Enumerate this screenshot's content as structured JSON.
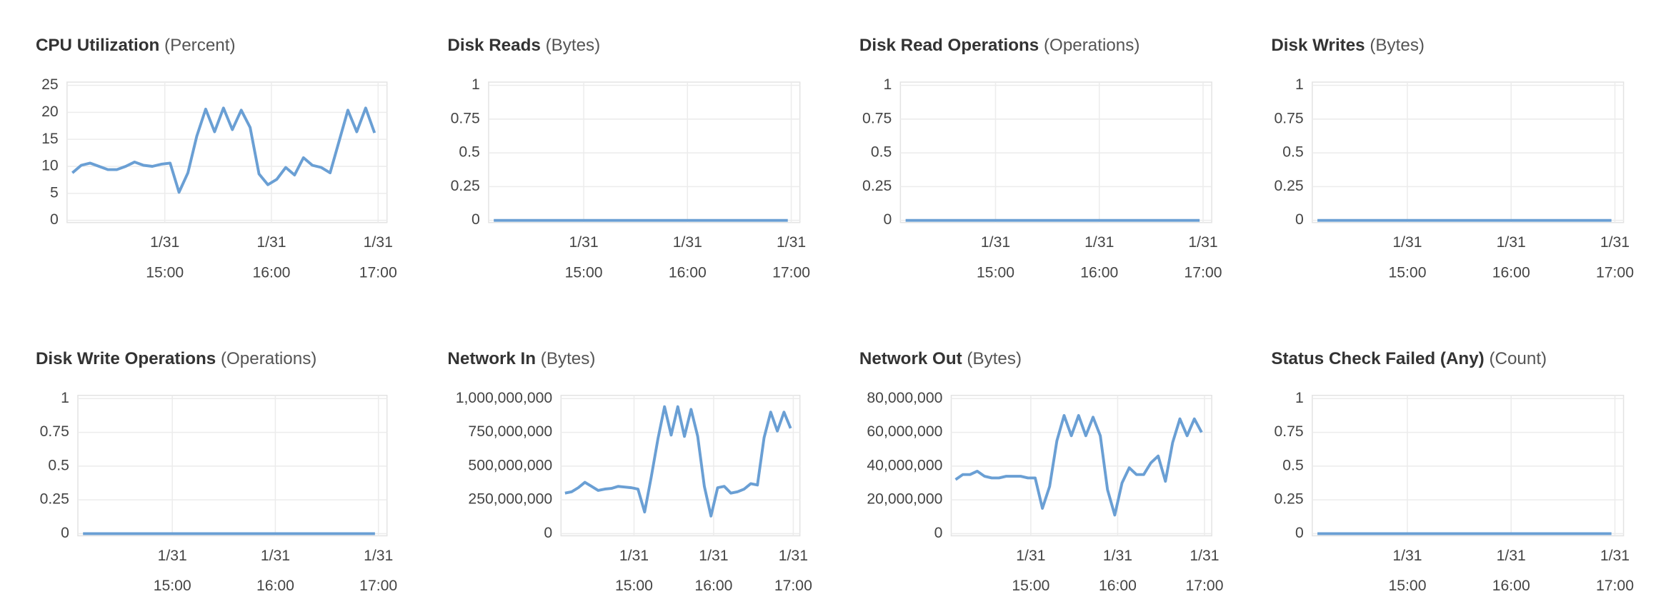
{
  "chart_data": [
    {
      "type": "line",
      "title": "CPU Utilization",
      "unit": "(Percent)",
      "color": "#6a9fd4",
      "grid": true,
      "x": [
        "1/31 14:08",
        "1/31 14:13",
        "1/31 14:18",
        "1/31 14:23",
        "1/31 14:28",
        "1/31 14:33",
        "1/31 14:38",
        "1/31 14:43",
        "1/31 14:48",
        "1/31 14:53",
        "1/31 14:58",
        "1/31 15:03",
        "1/31 15:08",
        "1/31 15:13",
        "1/31 15:18",
        "1/31 15:23",
        "1/31 15:28",
        "1/31 15:33",
        "1/31 15:38",
        "1/31 15:43",
        "1/31 15:48",
        "1/31 15:53",
        "1/31 15:58",
        "1/31 16:03",
        "1/31 16:08",
        "1/31 16:13",
        "1/31 16:18",
        "1/31 16:23",
        "1/31 16:28",
        "1/31 16:33",
        "1/31 16:38",
        "1/31 16:43",
        "1/31 16:48",
        "1/31 16:53",
        "1/31 16:58"
      ],
      "values": [
        8.8,
        10.2,
        10.6,
        10,
        9.4,
        9.4,
        10,
        10.8,
        10.2,
        10,
        10.4,
        10.6,
        5.2,
        8.8,
        15.6,
        20.6,
        16.4,
        20.8,
        16.8,
        20.4,
        17.2,
        8.6,
        6.6,
        7.6,
        9.8,
        8.4,
        11.6,
        10.2,
        9.8,
        8.8,
        14.6,
        20.4,
        16.4,
        20.8,
        16.2
      ],
      "xlim": [
        "1/31 14:05",
        "1/31 17:05"
      ],
      "xticks": [
        {
          "value": "1/31 15:00",
          "label": [
            "1/31",
            "15:00"
          ]
        },
        {
          "value": "1/31 16:00",
          "label": [
            "1/31",
            "16:00"
          ]
        },
        {
          "value": "1/31 17:00",
          "label": [
            "1/31",
            "17:00"
          ]
        }
      ],
      "ylim": [
        0,
        25
      ],
      "yticks": [
        0,
        5,
        10,
        15,
        20,
        25
      ]
    },
    {
      "type": "line",
      "title": "Disk Reads",
      "unit": "(Bytes)",
      "color": "#6a9fd4",
      "grid": true,
      "x": [
        "1/31 14:08",
        "1/31 14:13",
        "1/31 14:18",
        "1/31 14:23",
        "1/31 14:28",
        "1/31 14:33",
        "1/31 14:38",
        "1/31 14:43",
        "1/31 14:48",
        "1/31 14:53",
        "1/31 14:58",
        "1/31 15:03",
        "1/31 15:08",
        "1/31 15:13",
        "1/31 15:18",
        "1/31 15:23",
        "1/31 15:28",
        "1/31 15:33",
        "1/31 15:38",
        "1/31 15:43",
        "1/31 15:48",
        "1/31 15:53",
        "1/31 15:58",
        "1/31 16:03",
        "1/31 16:08",
        "1/31 16:13",
        "1/31 16:18",
        "1/31 16:23",
        "1/31 16:28",
        "1/31 16:33",
        "1/31 16:38",
        "1/31 16:43",
        "1/31 16:48",
        "1/31 16:53",
        "1/31 16:58"
      ],
      "values": [
        0,
        0,
        0,
        0,
        0,
        0,
        0,
        0,
        0,
        0,
        0,
        0,
        0,
        0,
        0,
        0,
        0,
        0,
        0,
        0,
        0,
        0,
        0,
        0,
        0,
        0,
        0,
        0,
        0,
        0,
        0,
        0,
        0,
        0,
        0
      ],
      "xlim": [
        "1/31 14:05",
        "1/31 17:05"
      ],
      "xticks": [
        {
          "value": "1/31 15:00",
          "label": [
            "1/31",
            "15:00"
          ]
        },
        {
          "value": "1/31 16:00",
          "label": [
            "1/31",
            "16:00"
          ]
        },
        {
          "value": "1/31 17:00",
          "label": [
            "1/31",
            "17:00"
          ]
        }
      ],
      "ylim": [
        0,
        1
      ],
      "yticks": [
        0,
        0.25,
        0.5,
        0.75,
        1
      ]
    },
    {
      "type": "line",
      "title": "Disk Read Operations",
      "unit": "(Operations)",
      "color": "#6a9fd4",
      "grid": true,
      "x": [
        "1/31 14:08",
        "1/31 14:13",
        "1/31 14:18",
        "1/31 14:23",
        "1/31 14:28",
        "1/31 14:33",
        "1/31 14:38",
        "1/31 14:43",
        "1/31 14:48",
        "1/31 14:53",
        "1/31 14:58",
        "1/31 15:03",
        "1/31 15:08",
        "1/31 15:13",
        "1/31 15:18",
        "1/31 15:23",
        "1/31 15:28",
        "1/31 15:33",
        "1/31 15:38",
        "1/31 15:43",
        "1/31 15:48",
        "1/31 15:53",
        "1/31 15:58",
        "1/31 16:03",
        "1/31 16:08",
        "1/31 16:13",
        "1/31 16:18",
        "1/31 16:23",
        "1/31 16:28",
        "1/31 16:33",
        "1/31 16:38",
        "1/31 16:43",
        "1/31 16:48",
        "1/31 16:53",
        "1/31 16:58"
      ],
      "values": [
        0,
        0,
        0,
        0,
        0,
        0,
        0,
        0,
        0,
        0,
        0,
        0,
        0,
        0,
        0,
        0,
        0,
        0,
        0,
        0,
        0,
        0,
        0,
        0,
        0,
        0,
        0,
        0,
        0,
        0,
        0,
        0,
        0,
        0,
        0
      ],
      "xlim": [
        "1/31 14:05",
        "1/31 17:05"
      ],
      "xticks": [
        {
          "value": "1/31 15:00",
          "label": [
            "1/31",
            "15:00"
          ]
        },
        {
          "value": "1/31 16:00",
          "label": [
            "1/31",
            "16:00"
          ]
        },
        {
          "value": "1/31 17:00",
          "label": [
            "1/31",
            "17:00"
          ]
        }
      ],
      "ylim": [
        0,
        1
      ],
      "yticks": [
        0,
        0.25,
        0.5,
        0.75,
        1
      ]
    },
    {
      "type": "line",
      "title": "Disk Writes",
      "unit": "(Bytes)",
      "color": "#6a9fd4",
      "grid": true,
      "x": [
        "1/31 14:08",
        "1/31 14:13",
        "1/31 14:18",
        "1/31 14:23",
        "1/31 14:28",
        "1/31 14:33",
        "1/31 14:38",
        "1/31 14:43",
        "1/31 14:48",
        "1/31 14:53",
        "1/31 14:58",
        "1/31 15:03",
        "1/31 15:08",
        "1/31 15:13",
        "1/31 15:18",
        "1/31 15:23",
        "1/31 15:28",
        "1/31 15:33",
        "1/31 15:38",
        "1/31 15:43",
        "1/31 15:48",
        "1/31 15:53",
        "1/31 15:58",
        "1/31 16:03",
        "1/31 16:08",
        "1/31 16:13",
        "1/31 16:18",
        "1/31 16:23",
        "1/31 16:28",
        "1/31 16:33",
        "1/31 16:38",
        "1/31 16:43",
        "1/31 16:48",
        "1/31 16:53",
        "1/31 16:58"
      ],
      "values": [
        0,
        0,
        0,
        0,
        0,
        0,
        0,
        0,
        0,
        0,
        0,
        0,
        0,
        0,
        0,
        0,
        0,
        0,
        0,
        0,
        0,
        0,
        0,
        0,
        0,
        0,
        0,
        0,
        0,
        0,
        0,
        0,
        0,
        0,
        0
      ],
      "xlim": [
        "1/31 14:05",
        "1/31 17:05"
      ],
      "xticks": [
        {
          "value": "1/31 15:00",
          "label": [
            "1/31",
            "15:00"
          ]
        },
        {
          "value": "1/31 16:00",
          "label": [
            "1/31",
            "16:00"
          ]
        },
        {
          "value": "1/31 17:00",
          "label": [
            "1/31",
            "17:00"
          ]
        }
      ],
      "ylim": [
        0,
        1
      ],
      "yticks": [
        0,
        0.25,
        0.5,
        0.75,
        1
      ]
    },
    {
      "type": "line",
      "title": "Disk Write Operations",
      "unit": "(Operations)",
      "color": "#6a9fd4",
      "grid": true,
      "x": [
        "1/31 14:08",
        "1/31 14:13",
        "1/31 14:18",
        "1/31 14:23",
        "1/31 14:28",
        "1/31 14:33",
        "1/31 14:38",
        "1/31 14:43",
        "1/31 14:48",
        "1/31 14:53",
        "1/31 14:58",
        "1/31 15:03",
        "1/31 15:08",
        "1/31 15:13",
        "1/31 15:18",
        "1/31 15:23",
        "1/31 15:28",
        "1/31 15:33",
        "1/31 15:38",
        "1/31 15:43",
        "1/31 15:48",
        "1/31 15:53",
        "1/31 15:58",
        "1/31 16:03",
        "1/31 16:08",
        "1/31 16:13",
        "1/31 16:18",
        "1/31 16:23",
        "1/31 16:28",
        "1/31 16:33",
        "1/31 16:38",
        "1/31 16:43",
        "1/31 16:48",
        "1/31 16:53",
        "1/31 16:58"
      ],
      "values": [
        0,
        0,
        0,
        0,
        0,
        0,
        0,
        0,
        0,
        0,
        0,
        0,
        0,
        0,
        0,
        0,
        0,
        0,
        0,
        0,
        0,
        0,
        0,
        0,
        0,
        0,
        0,
        0,
        0,
        0,
        0,
        0,
        0,
        0,
        0
      ],
      "xlim": [
        "1/31 14:05",
        "1/31 17:05"
      ],
      "xticks": [
        {
          "value": "1/31 15:00",
          "label": [
            "1/31",
            "15:00"
          ]
        },
        {
          "value": "1/31 16:00",
          "label": [
            "1/31",
            "16:00"
          ]
        },
        {
          "value": "1/31 17:00",
          "label": [
            "1/31",
            "17:00"
          ]
        }
      ],
      "ylim": [
        0,
        1
      ],
      "yticks": [
        0,
        0.25,
        0.5,
        0.75,
        1
      ]
    },
    {
      "type": "line",
      "title": "Network In",
      "unit": "(Bytes)",
      "color": "#6a9fd4",
      "grid": true,
      "x": [
        "1/31 14:08",
        "1/31 14:13",
        "1/31 14:18",
        "1/31 14:23",
        "1/31 14:28",
        "1/31 14:33",
        "1/31 14:38",
        "1/31 14:43",
        "1/31 14:48",
        "1/31 14:53",
        "1/31 14:58",
        "1/31 15:03",
        "1/31 15:08",
        "1/31 15:13",
        "1/31 15:18",
        "1/31 15:23",
        "1/31 15:28",
        "1/31 15:33",
        "1/31 15:38",
        "1/31 15:43",
        "1/31 15:48",
        "1/31 15:53",
        "1/31 15:58",
        "1/31 16:03",
        "1/31 16:08",
        "1/31 16:13",
        "1/31 16:18",
        "1/31 16:23",
        "1/31 16:28",
        "1/31 16:33",
        "1/31 16:38",
        "1/31 16:43",
        "1/31 16:48",
        "1/31 16:53",
        "1/31 16:58"
      ],
      "values": [
        300000000,
        310000000,
        340000000,
        380000000,
        350000000,
        320000000,
        330000000,
        335000000,
        350000000,
        345000000,
        340000000,
        330000000,
        160000000,
        420000000,
        700000000,
        940000000,
        730000000,
        940000000,
        720000000,
        920000000,
        720000000,
        350000000,
        130000000,
        340000000,
        350000000,
        300000000,
        310000000,
        330000000,
        370000000,
        360000000,
        710000000,
        900000000,
        760000000,
        900000000,
        780000000
      ],
      "xlim": [
        "1/31 14:05",
        "1/31 17:05"
      ],
      "xticks": [
        {
          "value": "1/31 15:00",
          "label": [
            "1/31",
            "15:00"
          ]
        },
        {
          "value": "1/31 16:00",
          "label": [
            "1/31",
            "16:00"
          ]
        },
        {
          "value": "1/31 17:00",
          "label": [
            "1/31",
            "17:00"
          ]
        }
      ],
      "ylim": [
        0,
        1000000000
      ],
      "yticks": [
        0,
        {
          "value": 250000000,
          "label": "250,000,000"
        },
        {
          "value": 500000000,
          "label": "500,000,000"
        },
        {
          "value": 750000000,
          "label": "750,000,000"
        },
        {
          "value": 1000000000,
          "label": "1,000,000,000"
        }
      ]
    },
    {
      "type": "line",
      "title": "Network Out",
      "unit": "(Bytes)",
      "color": "#6a9fd4",
      "grid": true,
      "x": [
        "1/31 14:08",
        "1/31 14:13",
        "1/31 14:18",
        "1/31 14:23",
        "1/31 14:28",
        "1/31 14:33",
        "1/31 14:38",
        "1/31 14:43",
        "1/31 14:48",
        "1/31 14:53",
        "1/31 14:58",
        "1/31 15:03",
        "1/31 15:08",
        "1/31 15:13",
        "1/31 15:18",
        "1/31 15:23",
        "1/31 15:28",
        "1/31 15:33",
        "1/31 15:38",
        "1/31 15:43",
        "1/31 15:48",
        "1/31 15:53",
        "1/31 15:58",
        "1/31 16:03",
        "1/31 16:08",
        "1/31 16:13",
        "1/31 16:18",
        "1/31 16:23",
        "1/31 16:28",
        "1/31 16:33",
        "1/31 16:38",
        "1/31 16:43",
        "1/31 16:48",
        "1/31 16:53",
        "1/31 16:58"
      ],
      "values": [
        32000000,
        35000000,
        35000000,
        37000000,
        34000000,
        33000000,
        33000000,
        34000000,
        34000000,
        34000000,
        33000000,
        33000000,
        15000000,
        28000000,
        55000000,
        70000000,
        58000000,
        70000000,
        58000000,
        69000000,
        58000000,
        26000000,
        11000000,
        30000000,
        39000000,
        35000000,
        35000000,
        42000000,
        46000000,
        31000000,
        54000000,
        68000000,
        58000000,
        68000000,
        60000000
      ],
      "xlim": [
        "1/31 14:05",
        "1/31 17:05"
      ],
      "xticks": [
        {
          "value": "1/31 15:00",
          "label": [
            "1/31",
            "15:00"
          ]
        },
        {
          "value": "1/31 16:00",
          "label": [
            "1/31",
            "16:00"
          ]
        },
        {
          "value": "1/31 17:00",
          "label": [
            "1/31",
            "17:00"
          ]
        }
      ],
      "ylim": [
        0,
        80000000
      ],
      "yticks": [
        0,
        {
          "value": 20000000,
          "label": "20,000,000"
        },
        {
          "value": 40000000,
          "label": "40,000,000"
        },
        {
          "value": 60000000,
          "label": "60,000,000"
        },
        {
          "value": 80000000,
          "label": "80,000,000"
        }
      ]
    },
    {
      "type": "line",
      "title": "Status Check Failed (Any)",
      "unit": "(Count)",
      "color": "#6a9fd4",
      "grid": true,
      "x": [
        "1/31 14:08",
        "1/31 14:13",
        "1/31 14:18",
        "1/31 14:23",
        "1/31 14:28",
        "1/31 14:33",
        "1/31 14:38",
        "1/31 14:43",
        "1/31 14:48",
        "1/31 14:53",
        "1/31 14:58",
        "1/31 15:03",
        "1/31 15:08",
        "1/31 15:13",
        "1/31 15:18",
        "1/31 15:23",
        "1/31 15:28",
        "1/31 15:33",
        "1/31 15:38",
        "1/31 15:43",
        "1/31 15:48",
        "1/31 15:53",
        "1/31 15:58",
        "1/31 16:03",
        "1/31 16:08",
        "1/31 16:13",
        "1/31 16:18",
        "1/31 16:23",
        "1/31 16:28",
        "1/31 16:33",
        "1/31 16:38",
        "1/31 16:43",
        "1/31 16:48",
        "1/31 16:53",
        "1/31 16:58"
      ],
      "values": [
        0,
        0,
        0,
        0,
        0,
        0,
        0,
        0,
        0,
        0,
        0,
        0,
        0,
        0,
        0,
        0,
        0,
        0,
        0,
        0,
        0,
        0,
        0,
        0,
        0,
        0,
        0,
        0,
        0,
        0,
        0,
        0,
        0,
        0,
        0
      ],
      "xlim": [
        "1/31 14:05",
        "1/31 17:05"
      ],
      "xticks": [
        {
          "value": "1/31 15:00",
          "label": [
            "1/31",
            "15:00"
          ]
        },
        {
          "value": "1/31 16:00",
          "label": [
            "1/31",
            "16:00"
          ]
        },
        {
          "value": "1/31 17:00",
          "label": [
            "1/31",
            "17:00"
          ]
        }
      ],
      "ylim": [
        0,
        1
      ],
      "yticks": [
        0,
        0.25,
        0.5,
        0.75,
        1
      ]
    }
  ]
}
